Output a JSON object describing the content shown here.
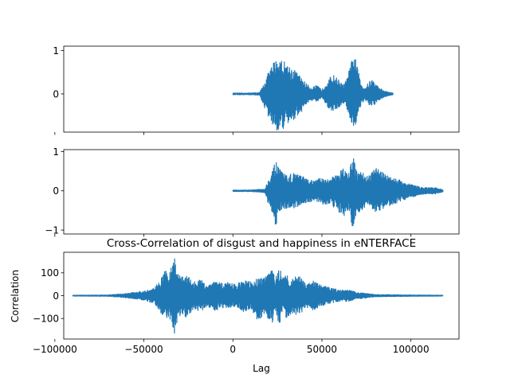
{
  "colors": {
    "series": "#1f77b4",
    "background": "#ffffff",
    "axes": "#000000"
  },
  "chart_data": [
    {
      "type": "line",
      "panel": "top",
      "title": "",
      "xlabel": "",
      "ylabel": "",
      "xlim": [
        -95000,
        127000
      ],
      "ylim": [
        -0.88,
        1.1
      ],
      "xticks": [
        -100000,
        -50000,
        0,
        50000,
        100000
      ],
      "xtick_labels": [],
      "yticks": [
        0,
        1
      ],
      "ytick_labels": [
        "0",
        "1"
      ],
      "signal_range": [
        0,
        90000
      ],
      "envelope": {
        "x": [
          0,
          8000,
          15000,
          17000,
          20000,
          23000,
          26000,
          29000,
          32000,
          35000,
          38000,
          41000,
          44000,
          47000,
          50000,
          53000,
          56000,
          59000,
          62000,
          64000,
          66000,
          68000,
          70000,
          72000,
          74000,
          76000,
          78000,
          80000,
          82000,
          84000,
          86000,
          88000,
          90000
        ],
        "upper": [
          0.02,
          0.02,
          0.03,
          0.2,
          0.5,
          0.75,
          0.85,
          0.75,
          0.65,
          0.55,
          0.4,
          0.25,
          0.15,
          0.2,
          0.1,
          0.3,
          0.45,
          0.35,
          0.2,
          0.35,
          0.65,
          1.0,
          0.6,
          0.25,
          0.15,
          0.25,
          0.35,
          0.25,
          0.15,
          0.1,
          0.06,
          0.04,
          0.02
        ],
        "lower": [
          -0.02,
          -0.02,
          -0.03,
          -0.25,
          -0.55,
          -0.8,
          -0.88,
          -0.8,
          -0.7,
          -0.55,
          -0.45,
          -0.25,
          -0.15,
          -0.2,
          -0.1,
          -0.3,
          -0.4,
          -0.35,
          -0.2,
          -0.35,
          -0.6,
          -0.85,
          -0.55,
          -0.25,
          -0.15,
          -0.25,
          -0.3,
          -0.25,
          -0.15,
          -0.1,
          -0.06,
          -0.04,
          -0.02
        ]
      }
    },
    {
      "type": "line",
      "panel": "middle",
      "title": "",
      "xlabel": "",
      "ylabel": "",
      "xlim": [
        -95000,
        127000
      ],
      "ylim": [
        -1.1,
        1.05
      ],
      "xticks": [
        -100000,
        -50000,
        0,
        50000,
        100000
      ],
      "xtick_labels": [],
      "yticks": [
        -1,
        0,
        1
      ],
      "ytick_labels": [
        "−1",
        "0",
        "1"
      ],
      "signal_range": [
        0,
        118000
      ],
      "envelope": {
        "x": [
          0,
          10000,
          18000,
          20000,
          22000,
          24000,
          27000,
          30000,
          34000,
          38000,
          42000,
          46000,
          50000,
          54000,
          58000,
          62000,
          65000,
          67000,
          69000,
          72000,
          76000,
          80000,
          85000,
          90000,
          95000,
          100000,
          105000,
          110000,
          114000,
          118000
        ],
        "upper": [
          0.02,
          0.02,
          0.05,
          0.3,
          0.5,
          0.75,
          0.5,
          0.4,
          0.45,
          0.4,
          0.3,
          0.25,
          0.35,
          0.3,
          0.4,
          0.6,
          0.45,
          0.98,
          0.6,
          0.5,
          0.35,
          0.6,
          0.45,
          0.35,
          0.25,
          0.18,
          0.1,
          0.08,
          0.08,
          0.03
        ],
        "lower": [
          -0.02,
          -0.02,
          -0.05,
          -0.35,
          -0.55,
          -0.9,
          -0.5,
          -0.45,
          -0.45,
          -0.4,
          -0.3,
          -0.25,
          -0.35,
          -0.35,
          -0.45,
          -0.7,
          -0.5,
          -1.0,
          -0.65,
          -0.5,
          -0.35,
          -0.55,
          -0.45,
          -0.35,
          -0.25,
          -0.18,
          -0.1,
          -0.08,
          -0.08,
          -0.03
        ]
      }
    },
    {
      "type": "line",
      "panel": "bottom",
      "title": "Cross-Correlation of disgust and happiness in eNTERFACE",
      "xlabel": "Lag",
      "ylabel": "Correlation",
      "xlim": [
        -95000,
        127000
      ],
      "ylim": [
        -190,
        190
      ],
      "xticks": [
        -100000,
        -50000,
        0,
        50000,
        100000
      ],
      "xtick_labels": [
        "−100000",
        "−50000",
        "0",
        "50000",
        "100000"
      ],
      "yticks": [
        -100,
        0,
        100
      ],
      "ytick_labels": [
        "−100",
        "0",
        "100"
      ],
      "signal_range": [
        -90000,
        118000
      ],
      "envelope": {
        "x": [
          -90000,
          -70000,
          -60000,
          -50000,
          -44000,
          -40000,
          -38000,
          -36000,
          -33000,
          -31000,
          -29000,
          -26000,
          -22000,
          -18000,
          -14000,
          -10000,
          -6000,
          -2000,
          2000,
          6000,
          10000,
          14000,
          18000,
          22000,
          24000,
          26000,
          28000,
          30000,
          33000,
          37000,
          41000,
          45000,
          50000,
          55000,
          60000,
          65000,
          70000,
          75000,
          80000,
          90000,
          100000,
          118000
        ],
        "upper": [
          2,
          3,
          10,
          20,
          35,
          80,
          120,
          90,
          170,
          110,
          80,
          95,
          60,
          70,
          50,
          65,
          55,
          60,
          50,
          70,
          60,
          75,
          80,
          120,
          80,
          130,
          80,
          100,
          75,
          90,
          50,
          65,
          45,
          35,
          25,
          25,
          15,
          10,
          5,
          4,
          3,
          2
        ],
        "lower": [
          -2,
          -3,
          -10,
          -20,
          -35,
          -80,
          -120,
          -90,
          -175,
          -115,
          -80,
          -95,
          -60,
          -70,
          -50,
          -65,
          -55,
          -60,
          -50,
          -70,
          -60,
          -110,
          -80,
          -125,
          -80,
          -140,
          -80,
          -100,
          -75,
          -90,
          -50,
          -65,
          -45,
          -35,
          -25,
          -25,
          -15,
          -10,
          -5,
          -4,
          -3,
          -2
        ]
      }
    }
  ]
}
